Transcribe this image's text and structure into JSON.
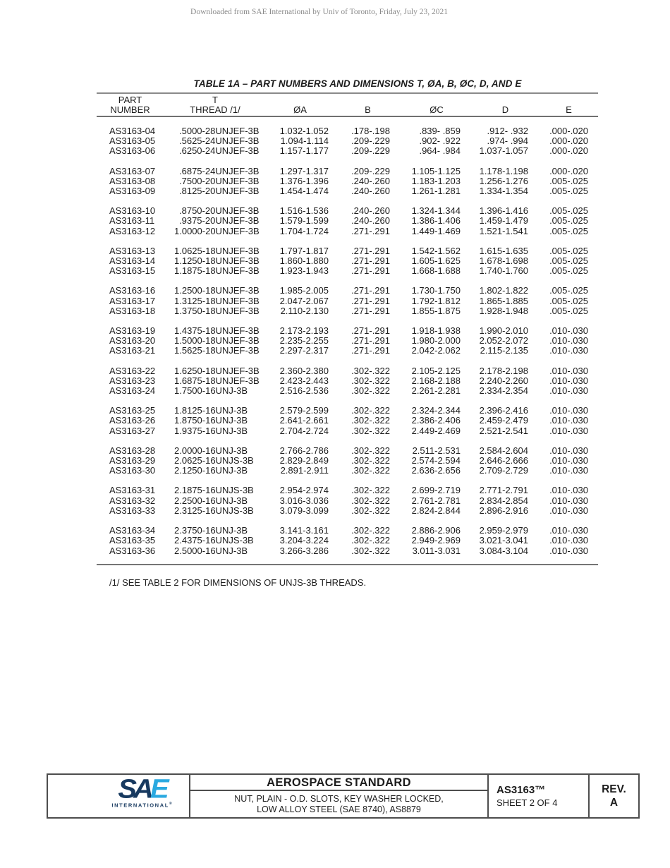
{
  "page": {
    "watermark": "Downloaded from SAE International by Univ of Toronto, Friday, July 23, 2021",
    "table_title": "TABLE 1A – PART NUMBERS AND DIMENSIONS T, ØA, B, ØC, D, AND E",
    "footnote": "/1/ SEE TABLE 2 FOR DIMENSIONS OF UNJS-3B THREADS."
  },
  "table": {
    "header_row1": [
      "PART",
      "T",
      "",
      "",
      "",
      "",
      ""
    ],
    "header_row2": [
      "NUMBER",
      "THREAD /1/",
      "ØA",
      "B",
      "ØC",
      "D",
      "E"
    ],
    "groups": [
      [
        [
          "AS3163-04",
          ".5000-28UNJEF-3B",
          "1.032-1.052",
          ".178-.198",
          ".839- .859",
          ".912- .932",
          ".000-.020"
        ],
        [
          "AS3163-05",
          ".5625-24UNJEF-3B",
          "1.094-1.114",
          ".209-.229",
          ".902- .922",
          ".974- .994",
          ".000-.020"
        ],
        [
          "AS3163-06",
          ".6250-24UNJEF-3B",
          "1.157-1.177",
          ".209-.229",
          ".964- .984",
          "1.037-1.057",
          ".000-.020"
        ]
      ],
      [
        [
          "AS3163-07",
          ".6875-24UNJEF-3B",
          "1.297-1.317",
          ".209-.229",
          "1.105-1.125",
          "1.178-1.198",
          ".000-.020"
        ],
        [
          "AS3163-08",
          ".7500-20UNJEF-3B",
          "1.376-1.396",
          ".240-.260",
          "1.183-1.203",
          "1.256-1.276",
          ".005-.025"
        ],
        [
          "AS3163-09",
          ".8125-20UNJEF-3B",
          "1.454-1.474",
          ".240-.260",
          "1.261-1.281",
          "1.334-1.354",
          ".005-.025"
        ]
      ],
      [
        [
          "AS3163-10",
          ".8750-20UNJEF-3B",
          "1.516-1.536",
          ".240-.260",
          "1.324-1.344",
          "1.396-1.416",
          ".005-.025"
        ],
        [
          "AS3163-11",
          ".9375-20UNJEF-3B",
          "1.579-1.599",
          ".240-.260",
          "1.386-1.406",
          "1.459-1.479",
          ".005-.025"
        ],
        [
          "AS3163-12",
          "1.0000-20UNJEF-3B",
          "1.704-1.724",
          ".271-.291",
          "1.449-1.469",
          "1.521-1.541",
          ".005-.025"
        ]
      ],
      [
        [
          "AS3163-13",
          "1.0625-18UNJEF-3B",
          "1.797-1.817",
          ".271-.291",
          "1.542-1.562",
          "1.615-1.635",
          ".005-.025"
        ],
        [
          "AS3163-14",
          "1.1250-18UNJEF-3B",
          "1.860-1.880",
          ".271-.291",
          "1.605-1.625",
          "1.678-1.698",
          ".005-.025"
        ],
        [
          "AS3163-15",
          "1.1875-18UNJEF-3B",
          "1.923-1.943",
          ".271-.291",
          "1.668-1.688",
          "1.740-1.760",
          ".005-.025"
        ]
      ],
      [
        [
          "AS3163-16",
          "1.2500-18UNJEF-3B",
          "1.985-2.005",
          ".271-.291",
          "1.730-1.750",
          "1.802-1.822",
          ".005-.025"
        ],
        [
          "AS3163-17",
          "1.3125-18UNJEF-3B",
          "2.047-2.067",
          ".271-.291",
          "1.792-1.812",
          "1.865-1.885",
          ".005-.025"
        ],
        [
          "AS3163-18",
          "1.3750-18UNJEF-3B",
          "2.110-2.130",
          ".271-.291",
          "1.855-1.875",
          "1.928-1.948",
          ".005-.025"
        ]
      ],
      [
        [
          "AS3163-19",
          "1.4375-18UNJEF-3B",
          "2.173-2.193",
          ".271-.291",
          "1.918-1.938",
          "1.990-2.010",
          ".010-.030"
        ],
        [
          "AS3163-20",
          "1.5000-18UNJEF-3B",
          "2.235-2.255",
          ".271-.291",
          "1.980-2.000",
          "2.052-2.072",
          ".010-.030"
        ],
        [
          "AS3163-21",
          "1.5625-18UNJEF-3B",
          "2.297-2.317",
          ".271-.291",
          "2.042-2.062",
          "2.115-2.135",
          ".010-.030"
        ]
      ],
      [
        [
          "AS3163-22",
          "1.6250-18UNJEF-3B",
          "2.360-2.380",
          ".302-.322",
          "2.105-2.125",
          "2.178-2.198",
          ".010-.030"
        ],
        [
          "AS3163-23",
          "1.6875-18UNJEF-3B",
          "2.423-2.443",
          ".302-.322",
          "2.168-2.188",
          "2.240-2.260",
          ".010-.030"
        ],
        [
          "AS3163-24",
          "1.7500-16UNJ-3B",
          "2.516-2.536",
          ".302-.322",
          "2.261-2.281",
          "2.334-2.354",
          ".010-.030"
        ]
      ],
      [
        [
          "AS3163-25",
          "1.8125-16UNJ-3B",
          "2.579-2.599",
          ".302-.322",
          "2.324-2.344",
          "2.396-2.416",
          ".010-.030"
        ],
        [
          "AS3163-26",
          "1.8750-16UNJ-3B",
          "2.641-2.661",
          ".302-.322",
          "2.386-2.406",
          "2.459-2.479",
          ".010-.030"
        ],
        [
          "AS3163-27",
          "1.9375-16UNJ-3B",
          "2.704-2.724",
          ".302-.322",
          "2.449-2.469",
          "2.521-2.541",
          ".010-.030"
        ]
      ],
      [
        [
          "AS3163-28",
          "2.0000-16UNJ-3B",
          "2.766-2.786",
          ".302-.322",
          "2.511-2.531",
          "2.584-2.604",
          ".010-.030"
        ],
        [
          "AS3163-29",
          "2.0625-16UNJS-3B",
          "2.829-2.849",
          ".302-.322",
          "2.574-2.594",
          "2.646-2.666",
          ".010-.030"
        ],
        [
          "AS3163-30",
          "2.1250-16UNJ-3B",
          "2.891-2.911",
          ".302-.322",
          "2.636-2.656",
          "2.709-2.729",
          ".010-.030"
        ]
      ],
      [
        [
          "AS3163-31",
          "2.1875-16UNJS-3B",
          "2.954-2.974",
          ".302-.322",
          "2.699-2.719",
          "2.771-2.791",
          ".010-.030"
        ],
        [
          "AS3163-32",
          "2.2500-16UNJ-3B",
          "3.016-3.036",
          ".302-.322",
          "2.761-2.781",
          "2.834-2.854",
          ".010-.030"
        ],
        [
          "AS3163-33",
          "2.3125-16UNJS-3B",
          "3.079-3.099",
          ".302-.322",
          "2.824-2.844",
          "2.896-2.916",
          ".010-.030"
        ]
      ],
      [
        [
          "AS3163-34",
          "2.3750-16UNJ-3B",
          "3.141-3.161",
          ".302-.322",
          "2.886-2.906",
          "2.959-2.979",
          ".010-.030"
        ],
        [
          "AS3163-35",
          "2.4375-16UNJS-3B",
          "3.204-3.224",
          ".302-.322",
          "2.949-2.969",
          "3.021-3.041",
          ".010-.030"
        ],
        [
          "AS3163-36",
          "2.5000-16UNJ-3B",
          "3.266-3.286",
          ".302-.322",
          "3.011-3.031",
          "3.084-3.104",
          ".010-.030"
        ]
      ]
    ]
  },
  "footer": {
    "logo_s": "S",
    "logo_a": "A",
    "logo_e": "E",
    "logo_sub": "INTERNATIONAL",
    "logo_reg": "®",
    "title": "AEROSPACE STANDARD",
    "subtitle_line1": "NUT, PLAIN - O.D. SLOTS, KEY WASHER LOCKED,",
    "subtitle_line2": "LOW ALLOY STEEL (SAE 8740), AS8879",
    "doc_number": "AS3163™",
    "sheet": "SHEET 2 OF 4",
    "rev_label": "REV.",
    "rev_value": "A"
  },
  "colors": {
    "sae_navy": "#17395f",
    "sae_blue": "#2aa9e0"
  }
}
